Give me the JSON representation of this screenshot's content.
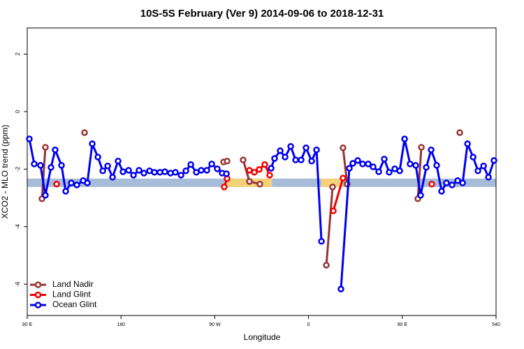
{
  "chart_data": {
    "type": "line",
    "title": "10S-5S February (Ver 9)   2014-09-06 to 2018-12-31",
    "xlabel": "Longitude",
    "ylabel": "XCO2 - MLO trend (ppm)",
    "xlim": [
      90,
      540
    ],
    "ylim": [
      -7.09,
      2.91
    ],
    "xticks": [
      {
        "value": 90,
        "label": "90 E"
      },
      180,
      {
        "value": 270,
        "label": "90 W"
      },
      {
        "value": 360,
        "label": "0"
      },
      {
        "value": 450,
        "label": "90 E"
      },
      540
    ],
    "yticks": [
      -6,
      -4,
      -2,
      0,
      2
    ],
    "legend": "lower left",
    "bands": [
      {
        "xlim": [
          90,
          540
        ],
        "ylim": [
          -2.62,
          -2.33
        ],
        "color": "#a7bcd9"
      },
      {
        "xlim": [
          281,
          325
        ],
        "ylim": [
          -2.62,
          -2.33
        ],
        "color": "#f5d27a"
      },
      {
        "xlim": [
          372,
          393
        ],
        "ylim": [
          -2.62,
          -2.33
        ],
        "color": "#f5d27a"
      }
    ],
    "series": [
      {
        "name": "Land Nadir",
        "color": "#993333",
        "x": [
          104.1,
          107.4,
          null,
          145.0,
          null,
          278.5,
          281.8,
          null,
          297.2,
          303.3,
          313.3,
          null,
          377.1,
          383.1,
          null,
          393.1,
          397.1,
          null,
          464.9,
          468.3,
          null,
          505.2
        ],
        "values": [
          -3.03,
          -1.24,
          null,
          -0.73,
          null,
          -1.75,
          -1.72,
          null,
          -1.68,
          -2.43,
          -2.52,
          null,
          -5.34,
          -2.62,
          null,
          -1.26,
          -2.52,
          null,
          -3.03,
          -1.24,
          null,
          -0.73
        ]
      },
      {
        "name": "Land Glint",
        "color": "#ee0000",
        "x": [
          118.2,
          null,
          279.1,
          281.8,
          null,
          303.3,
          308.0,
          312.7,
          318.0,
          322.7,
          null,
          383.8,
          393.1,
          null,
          478.3
        ],
        "values": [
          -2.52,
          null,
          -2.62,
          -2.33,
          null,
          -2.04,
          -2.11,
          -2.01,
          -1.84,
          -2.21,
          null,
          -3.45,
          -2.31,
          null,
          -2.52
        ]
      },
      {
        "name": "Ocean Glint",
        "color": "#0000ee",
        "x": [
          92.0,
          96.7,
          102.7,
          107.4,
          112.8,
          116.8,
          122.9,
          126.9,
          132.3,
          137.6,
          143.7,
          147.7,
          152.4,
          157.8,
          162.5,
          167.2,
          171.9,
          177.2,
          181.9,
          187.3,
          192.0,
          197.3,
          202.0,
          207.4,
          212.1,
          217.4,
          222.1,
          227.5,
          232.2,
          237.6,
          242.3,
          247.0,
          252.3,
          257.0,
          262.4,
          267.1,
          272.4,
          277.1,
          281.2,
          null,
          324.1,
          327.4,
          332.8,
          337.5,
          342.9,
          347.6,
          352.9,
          357.6,
          363.0,
          367.7,
          372.4,
          null,
          391.1,
          399.2,
          402.5,
          407.2,
          411.9,
          417.3,
          422.0,
          427.4,
          432.7,
          437.4,
          442.8,
          447.5,
          452.2,
          457.5,
          462.9,
          467.6,
          473.0,
          477.7,
          483.0,
          487.7,
          492.4,
          497.8,
          503.2,
          507.9,
          512.6,
          518.0,
          522.6,
          528.0,
          532.7,
          538.0
        ],
        "values": [
          -0.95,
          -1.82,
          -1.87,
          -2.91,
          -1.94,
          -1.33,
          -1.87,
          -2.77,
          -2.48,
          -2.55,
          -2.4,
          -2.48,
          -1.12,
          -1.58,
          -2.06,
          -1.89,
          -2.28,
          -1.72,
          -2.09,
          -2.04,
          -2.21,
          -2.04,
          -2.14,
          -2.06,
          -2.11,
          -2.11,
          -2.09,
          -2.14,
          -2.11,
          -2.21,
          -2.06,
          -1.84,
          -2.11,
          -2.04,
          -2.04,
          -1.82,
          -1.99,
          -2.14,
          -2.16,
          null,
          -1.97,
          -1.63,
          -1.36,
          -1.58,
          -1.21,
          -1.68,
          -1.68,
          -1.26,
          -1.72,
          -1.33,
          -4.51,
          null,
          -6.17,
          -1.97,
          -1.8,
          -1.7,
          -1.82,
          -1.82,
          -1.92,
          -2.09,
          -1.65,
          -2.11,
          -1.99,
          -2.06,
          -0.95,
          -1.82,
          -1.87,
          -2.91,
          -1.94,
          -1.33,
          -1.87,
          -2.77,
          -2.48,
          -2.55,
          -2.4,
          -2.48,
          -1.12,
          -1.58,
          -2.06,
          -1.89,
          -2.28,
          -1.7
        ]
      }
    ]
  }
}
